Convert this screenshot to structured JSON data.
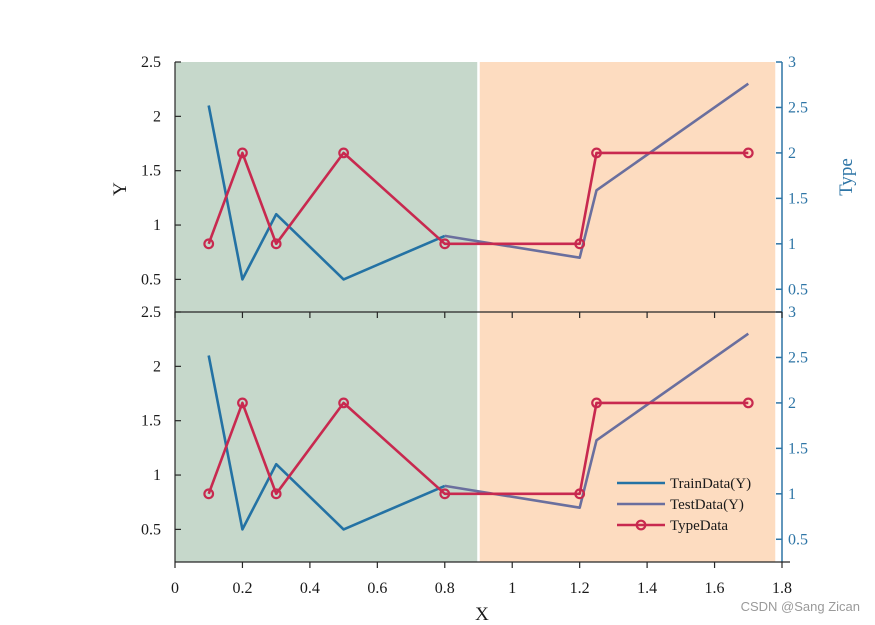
{
  "watermark": "CSDN @Sang Zican",
  "colors": {
    "train": "#2472a4",
    "test": "#6a6f9e",
    "type": "#c8294f",
    "region_left": "#c6d8cb",
    "region_right": "#fddcc0",
    "right_axis": "#2e75a6",
    "divider": "#ffffff"
  },
  "chart_data": {
    "type": "line",
    "layout": "two stacked panels sharing x-axis, dual y-axes",
    "xlabel": "X",
    "xlim": [
      0,
      1.8
    ],
    "x_ticks": [
      "0",
      "0.2",
      "0.4",
      "0.6",
      "0.8",
      "1",
      "1.2",
      "1.4",
      "1.6",
      "1.8"
    ],
    "x_tick_values": [
      0,
      0.2,
      0.4,
      0.6,
      0.8,
      1.0,
      1.2,
      1.4,
      1.6,
      1.8
    ],
    "regions": [
      {
        "from": 0,
        "to": 0.9,
        "color": "#c6d8cb"
      },
      {
        "from": 0.9,
        "to": 1.78,
        "color": "#fddcc0"
      }
    ],
    "panels": [
      {
        "ylabel": "Y",
        "ylim": [
          0.2,
          2.5
        ],
        "y_ticks": [
          "0.5",
          "1",
          "1.5",
          "2",
          "2.5"
        ],
        "y_tick_values": [
          0.5,
          1,
          1.5,
          2,
          2.5
        ],
        "right_ylabel": "Type",
        "right_ylim": [
          0.25,
          3
        ],
        "right_ticks": [
          "0.5",
          "1",
          "1.5",
          "2",
          "2.5",
          "3"
        ],
        "right_tick_values": [
          0.5,
          1,
          1.5,
          2,
          2.5,
          3
        ],
        "legend": false
      },
      {
        "ylabel": "",
        "ylim": [
          0.2,
          2.5
        ],
        "y_ticks": [
          "0.5",
          "1",
          "1.5",
          "2",
          "2.5"
        ],
        "y_tick_values": [
          0.5,
          1,
          1.5,
          2,
          2.5
        ],
        "right_ylabel": "",
        "right_ylim": [
          0.25,
          3
        ],
        "right_ticks": [
          "0.5",
          "1",
          "1.5",
          "2",
          "2.5",
          "3"
        ],
        "right_tick_values": [
          0.5,
          1,
          1.5,
          2,
          2.5,
          3
        ],
        "legend": true,
        "legend_position": "bottom-right"
      }
    ],
    "series": [
      {
        "name": "TrainData(Y)",
        "axis": "left",
        "x": [
          0.1,
          0.2,
          0.3,
          0.5,
          0.8
        ],
        "y": [
          2.1,
          0.5,
          1.1,
          0.5,
          0.9
        ]
      },
      {
        "name": "TestData(Y)",
        "axis": "left",
        "x": [
          0.8,
          1.2,
          1.25,
          1.7
        ],
        "y": [
          0.9,
          0.7,
          1.32,
          2.3
        ]
      },
      {
        "name": "TypeData",
        "axis": "right",
        "marker": "circle",
        "x": [
          0.1,
          0.2,
          0.3,
          0.5,
          0.8,
          1.2,
          1.25,
          1.7
        ],
        "y": [
          1,
          2,
          1,
          2,
          1,
          1,
          2,
          2
        ]
      }
    ]
  }
}
